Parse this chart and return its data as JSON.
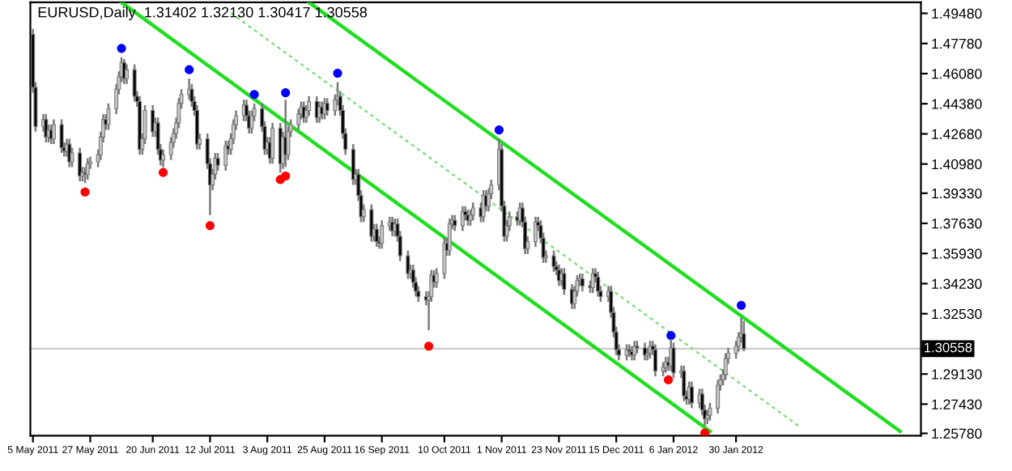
{
  "chart_data": {
    "type": "candlestick",
    "title": "EURUSD,Daily  1.31402 1.32130 1.30417 1.30558",
    "x": [
      "2011-05-05",
      "2011-05-06",
      "2011-05-09",
      "2011-05-10",
      "2011-05-11",
      "2011-05-12",
      "2011-05-13",
      "2011-05-16",
      "2011-05-17",
      "2011-05-18",
      "2011-05-19",
      "2011-05-20",
      "2011-05-23",
      "2011-05-24",
      "2011-05-25",
      "2011-05-26",
      "2011-05-27",
      "2011-05-30",
      "2011-05-31",
      "2011-06-01",
      "2011-06-02",
      "2011-06-03",
      "2011-06-06",
      "2011-06-07",
      "2011-06-08",
      "2011-06-09",
      "2011-06-10",
      "2011-06-13",
      "2011-06-14",
      "2011-06-15",
      "2011-06-16",
      "2011-06-17",
      "2011-06-20",
      "2011-06-21",
      "2011-06-22",
      "2011-06-23",
      "2011-06-24",
      "2011-06-27",
      "2011-06-28",
      "2011-06-29",
      "2011-06-30",
      "2011-07-01",
      "2011-07-04",
      "2011-07-05",
      "2011-07-06",
      "2011-07-07",
      "2011-07-08",
      "2011-07-11",
      "2011-07-12",
      "2011-07-13",
      "2011-07-14",
      "2011-07-15",
      "2011-07-18",
      "2011-07-19",
      "2011-07-20",
      "2011-07-21",
      "2011-07-22",
      "2011-07-25",
      "2011-07-26",
      "2011-07-27",
      "2011-07-28",
      "2011-07-29",
      "2011-08-01",
      "2011-08-02",
      "2011-08-03",
      "2011-08-04",
      "2011-08-05",
      "2011-08-08",
      "2011-08-09",
      "2011-08-10",
      "2011-08-11",
      "2011-08-12",
      "2011-08-15",
      "2011-08-16",
      "2011-08-17",
      "2011-08-18",
      "2011-08-19",
      "2011-08-22",
      "2011-08-23",
      "2011-08-24",
      "2011-08-25",
      "2011-08-26",
      "2011-08-29",
      "2011-08-30",
      "2011-08-31",
      "2011-09-01",
      "2011-09-02",
      "2011-09-05",
      "2011-09-06",
      "2011-09-07",
      "2011-09-08",
      "2011-09-09",
      "2011-09-12",
      "2011-09-13",
      "2011-09-14",
      "2011-09-15",
      "2011-09-16",
      "2011-09-19",
      "2011-09-20",
      "2011-09-21",
      "2011-09-22",
      "2011-09-23",
      "2011-09-26",
      "2011-09-27",
      "2011-09-28",
      "2011-09-29",
      "2011-09-30",
      "2011-10-03",
      "2011-10-04",
      "2011-10-05",
      "2011-10-06",
      "2011-10-07",
      "2011-10-10",
      "2011-10-11",
      "2011-10-12",
      "2011-10-13",
      "2011-10-14",
      "2011-10-17",
      "2011-10-18",
      "2011-10-19",
      "2011-10-20",
      "2011-10-21",
      "2011-10-24",
      "2011-10-25",
      "2011-10-26",
      "2011-10-27",
      "2011-10-28",
      "2011-10-31",
      "2011-11-01",
      "2011-11-02",
      "2011-11-03",
      "2011-11-04",
      "2011-11-07",
      "2011-11-08",
      "2011-11-09",
      "2011-11-10",
      "2011-11-11",
      "2011-11-14",
      "2011-11-15",
      "2011-11-16",
      "2011-11-17",
      "2011-11-18",
      "2011-11-21",
      "2011-11-22",
      "2011-11-23",
      "2011-11-24",
      "2011-11-25",
      "2011-11-28",
      "2011-11-29",
      "2011-11-30",
      "2011-12-01",
      "2011-12-02",
      "2011-12-05",
      "2011-12-06",
      "2011-12-07",
      "2011-12-08",
      "2011-12-09",
      "2011-12-12",
      "2011-12-13",
      "2011-12-14",
      "2011-12-15",
      "2011-12-16",
      "2011-12-19",
      "2011-12-20",
      "2011-12-21",
      "2011-12-22",
      "2011-12-23",
      "2011-12-26",
      "2011-12-27",
      "2011-12-28",
      "2011-12-29",
      "2011-12-30",
      "2012-01-02",
      "2012-01-03",
      "2012-01-04",
      "2012-01-05",
      "2012-01-06",
      "2012-01-09",
      "2012-01-10",
      "2012-01-11",
      "2012-01-12",
      "2012-01-13",
      "2012-01-16",
      "2012-01-17",
      "2012-01-18",
      "2012-01-19",
      "2012-01-20",
      "2012-01-23",
      "2012-01-24",
      "2012-01-25",
      "2012-01-26",
      "2012-01-27",
      "2012-01-30",
      "2012-01-31",
      "2012-02-01",
      "2012-02-02"
    ],
    "ohlc": [
      [
        1.483,
        1.486,
        1.45,
        1.453
      ],
      [
        1.453,
        1.456,
        1.428,
        1.431
      ],
      [
        1.431,
        1.438,
        1.428,
        1.435
      ],
      [
        1.435,
        1.438,
        1.422,
        1.425
      ],
      [
        1.425,
        1.432,
        1.422,
        1.429
      ],
      [
        1.429,
        1.432,
        1.421,
        1.424
      ],
      [
        1.424,
        1.435,
        1.421,
        1.432
      ],
      [
        1.432,
        1.435,
        1.416,
        1.419
      ],
      [
        1.419,
        1.422,
        1.414,
        1.417
      ],
      [
        1.417,
        1.424,
        1.414,
        1.421
      ],
      [
        1.421,
        1.424,
        1.408,
        1.411
      ],
      [
        1.411,
        1.419,
        1.408,
        1.416
      ],
      [
        1.416,
        1.419,
        1.4,
        1.403
      ],
      [
        1.403,
        1.408,
        1.4,
        1.405
      ],
      [
        1.405,
        1.408,
        1.399,
        1.404
      ],
      [
        1.404,
        1.413,
        1.401,
        1.41
      ],
      [
        1.41,
        1.414,
        1.407,
        1.411
      ],
      [
        1.411,
        1.418,
        1.408,
        1.415
      ],
      [
        1.415,
        1.428,
        1.412,
        1.425
      ],
      [
        1.425,
        1.438,
        1.422,
        1.435
      ],
      [
        1.435,
        1.438,
        1.429,
        1.432
      ],
      [
        1.432,
        1.444,
        1.429,
        1.441
      ],
      [
        1.441,
        1.455,
        1.438,
        1.452
      ],
      [
        1.452,
        1.462,
        1.449,
        1.459
      ],
      [
        1.459,
        1.47,
        1.456,
        1.467
      ],
      [
        1.467,
        1.469,
        1.455,
        1.458
      ],
      [
        1.458,
        1.466,
        1.455,
        1.463
      ],
      [
        1.463,
        1.466,
        1.445,
        1.448
      ],
      [
        1.448,
        1.451,
        1.442,
        1.445
      ],
      [
        1.445,
        1.448,
        1.415,
        1.418
      ],
      [
        1.418,
        1.427,
        1.415,
        1.424
      ],
      [
        1.424,
        1.443,
        1.421,
        1.44
      ],
      [
        1.44,
        1.443,
        1.425,
        1.428
      ],
      [
        1.428,
        1.436,
        1.425,
        1.433
      ],
      [
        1.433,
        1.436,
        1.415,
        1.418
      ],
      [
        1.418,
        1.421,
        1.409,
        1.412
      ],
      [
        1.412,
        1.418,
        1.408,
        1.415
      ],
      [
        1.415,
        1.425,
        1.412,
        1.422
      ],
      [
        1.422,
        1.43,
        1.419,
        1.427
      ],
      [
        1.427,
        1.436,
        1.424,
        1.433
      ],
      [
        1.433,
        1.447,
        1.43,
        1.444
      ],
      [
        1.444,
        1.452,
        1.441,
        1.449
      ],
      [
        1.449,
        1.458,
        1.446,
        1.452
      ],
      [
        1.452,
        1.455,
        1.442,
        1.445
      ],
      [
        1.445,
        1.448,
        1.437,
        1.44
      ],
      [
        1.44,
        1.443,
        1.418,
        1.421
      ],
      [
        1.421,
        1.427,
        1.418,
        1.424
      ],
      [
        1.424,
        1.427,
        1.407,
        1.41
      ],
      [
        1.41,
        1.413,
        1.381,
        1.398
      ],
      [
        1.398,
        1.407,
        1.395,
        1.404
      ],
      [
        1.404,
        1.416,
        1.401,
        1.413
      ],
      [
        1.413,
        1.416,
        1.406,
        1.409
      ],
      [
        1.409,
        1.423,
        1.406,
        1.42
      ],
      [
        1.42,
        1.423,
        1.415,
        1.418
      ],
      [
        1.418,
        1.427,
        1.415,
        1.424
      ],
      [
        1.424,
        1.435,
        1.421,
        1.432
      ],
      [
        1.432,
        1.44,
        1.429,
        1.437
      ],
      [
        1.437,
        1.446,
        1.434,
        1.443
      ],
      [
        1.443,
        1.446,
        1.434,
        1.437
      ],
      [
        1.437,
        1.44,
        1.427,
        1.43
      ],
      [
        1.43,
        1.44,
        1.427,
        1.437
      ],
      [
        1.437,
        1.444,
        1.434,
        1.441
      ],
      [
        1.441,
        1.444,
        1.428,
        1.431
      ],
      [
        1.431,
        1.434,
        1.415,
        1.418
      ],
      [
        1.418,
        1.425,
        1.415,
        1.422
      ],
      [
        1.422,
        1.425,
        1.41,
        1.413
      ],
      [
        1.413,
        1.433,
        1.41,
        1.43
      ],
      [
        1.43,
        1.433,
        1.405,
        1.41
      ],
      [
        1.41,
        1.428,
        1.407,
        1.425
      ],
      [
        1.425,
        1.446,
        1.408,
        1.415
      ],
      [
        1.415,
        1.431,
        1.412,
        1.428
      ],
      [
        1.428,
        1.435,
        1.425,
        1.432
      ],
      [
        1.432,
        1.441,
        1.429,
        1.438
      ],
      [
        1.438,
        1.445,
        1.435,
        1.442
      ],
      [
        1.442,
        1.445,
        1.433,
        1.436
      ],
      [
        1.436,
        1.443,
        1.433,
        1.44
      ],
      [
        1.44,
        1.448,
        1.437,
        1.445
      ],
      [
        1.445,
        1.448,
        1.433,
        1.436
      ],
      [
        1.436,
        1.445,
        1.433,
        1.442
      ],
      [
        1.442,
        1.445,
        1.435,
        1.438
      ],
      [
        1.438,
        1.447,
        1.435,
        1.444
      ],
      [
        1.444,
        1.447,
        1.437,
        1.44
      ],
      [
        1.44,
        1.449,
        1.437,
        1.446
      ],
      [
        1.446,
        1.456,
        1.443,
        1.448
      ],
      [
        1.448,
        1.451,
        1.437,
        1.44
      ],
      [
        1.44,
        1.443,
        1.424,
        1.427
      ],
      [
        1.427,
        1.43,
        1.415,
        1.418
      ],
      [
        1.418,
        1.421,
        1.398,
        1.401
      ],
      [
        1.401,
        1.407,
        1.398,
        1.404
      ],
      [
        1.404,
        1.407,
        1.389,
        1.392
      ],
      [
        1.392,
        1.395,
        1.377,
        1.38
      ],
      [
        1.38,
        1.387,
        1.377,
        1.384
      ],
      [
        1.384,
        1.387,
        1.366,
        1.369
      ],
      [
        1.369,
        1.376,
        1.366,
        1.373
      ],
      [
        1.373,
        1.376,
        1.363,
        1.366
      ],
      [
        1.366,
        1.369,
        1.362,
        1.365
      ],
      [
        1.365,
        1.378,
        1.362,
        1.375
      ],
      [
        1.375,
        1.38,
        1.372,
        1.377
      ],
      [
        1.377,
        1.38,
        1.369,
        1.372
      ],
      [
        1.372,
        1.379,
        1.369,
        1.376
      ],
      [
        1.376,
        1.379,
        1.366,
        1.369
      ],
      [
        1.369,
        1.372,
        1.355,
        1.358
      ],
      [
        1.358,
        1.361,
        1.345,
        1.348
      ],
      [
        1.348,
        1.353,
        1.345,
        1.35
      ],
      [
        1.35,
        1.353,
        1.34,
        1.343
      ],
      [
        1.343,
        1.346,
        1.335,
        1.338
      ],
      [
        1.338,
        1.341,
        1.332,
        1.335
      ],
      [
        1.335,
        1.338,
        1.33,
        1.333
      ],
      [
        1.333,
        1.338,
        1.316,
        1.335
      ],
      [
        1.335,
        1.35,
        1.332,
        1.347
      ],
      [
        1.347,
        1.35,
        1.34,
        1.343
      ],
      [
        1.343,
        1.351,
        1.34,
        1.348
      ],
      [
        1.348,
        1.368,
        1.345,
        1.365
      ],
      [
        1.365,
        1.368,
        1.358,
        1.361
      ],
      [
        1.361,
        1.379,
        1.358,
        1.376
      ],
      [
        1.376,
        1.381,
        1.373,
        1.378
      ],
      [
        1.378,
        1.381,
        1.372,
        1.375
      ],
      [
        1.375,
        1.386,
        1.372,
        1.383
      ],
      [
        1.383,
        1.386,
        1.378,
        1.381
      ],
      [
        1.381,
        1.384,
        1.375,
        1.378
      ],
      [
        1.378,
        1.384,
        1.375,
        1.381
      ],
      [
        1.381,
        1.388,
        1.378,
        1.385
      ],
      [
        1.385,
        1.388,
        1.377,
        1.38
      ],
      [
        1.38,
        1.395,
        1.377,
        1.392
      ],
      [
        1.392,
        1.395,
        1.383,
        1.386
      ],
      [
        1.386,
        1.396,
        1.383,
        1.393
      ],
      [
        1.393,
        1.401,
        1.39,
        1.398
      ],
      [
        1.398,
        1.424,
        1.395,
        1.418
      ],
      [
        1.418,
        1.421,
        1.383,
        1.386
      ],
      [
        1.386,
        1.389,
        1.366,
        1.369
      ],
      [
        1.369,
        1.378,
        1.366,
        1.375
      ],
      [
        1.375,
        1.383,
        1.372,
        1.38
      ],
      [
        1.38,
        1.383,
        1.375,
        1.378
      ],
      [
        1.378,
        1.388,
        1.375,
        1.385
      ],
      [
        1.385,
        1.388,
        1.374,
        1.377
      ],
      [
        1.377,
        1.38,
        1.359,
        1.362
      ],
      [
        1.362,
        1.369,
        1.359,
        1.366
      ],
      [
        1.366,
        1.38,
        1.363,
        1.377
      ],
      [
        1.377,
        1.38,
        1.372,
        1.375
      ],
      [
        1.375,
        1.378,
        1.365,
        1.368
      ],
      [
        1.368,
        1.371,
        1.354,
        1.357
      ],
      [
        1.357,
        1.361,
        1.354,
        1.358
      ],
      [
        1.358,
        1.361,
        1.349,
        1.352
      ],
      [
        1.352,
        1.355,
        1.347,
        1.35
      ],
      [
        1.35,
        1.353,
        1.341,
        1.344
      ],
      [
        1.344,
        1.351,
        1.341,
        1.348
      ],
      [
        1.348,
        1.351,
        1.336,
        1.339
      ],
      [
        1.339,
        1.342,
        1.328,
        1.331
      ],
      [
        1.331,
        1.341,
        1.328,
        1.338
      ],
      [
        1.338,
        1.347,
        1.335,
        1.344
      ],
      [
        1.344,
        1.348,
        1.341,
        1.345
      ],
      [
        1.345,
        1.348,
        1.338,
        1.341
      ],
      [
        1.341,
        1.344,
        1.337,
        1.34
      ],
      [
        1.34,
        1.351,
        1.337,
        1.348
      ],
      [
        1.348,
        1.351,
        1.343,
        1.346
      ],
      [
        1.346,
        1.349,
        1.335,
        1.338
      ],
      [
        1.338,
        1.341,
        1.332,
        1.335
      ],
      [
        1.335,
        1.341,
        1.332,
        1.338
      ],
      [
        1.338,
        1.341,
        1.323,
        1.326
      ],
      [
        1.326,
        1.329,
        1.312,
        1.315
      ],
      [
        1.315,
        1.318,
        1.302,
        1.305
      ],
      [
        1.305,
        1.308,
        1.299,
        1.302
      ],
      [
        1.302,
        1.308,
        1.299,
        1.305
      ],
      [
        1.305,
        1.308,
        1.301,
        1.304
      ],
      [
        1.304,
        1.307,
        1.299,
        1.302
      ],
      [
        1.302,
        1.31,
        1.299,
        1.307
      ],
      [
        1.307,
        1.31,
        1.303,
        1.306
      ],
      [
        1.306,
        1.309,
        1.299,
        1.302
      ],
      [
        1.302,
        1.306,
        1.299,
        1.303
      ],
      [
        1.303,
        1.31,
        1.3,
        1.307
      ],
      [
        1.307,
        1.31,
        1.302,
        1.305
      ],
      [
        1.305,
        1.308,
        1.29,
        1.293
      ],
      [
        1.293,
        1.298,
        1.29,
        1.295
      ],
      [
        1.295,
        1.301,
        1.292,
        1.298
      ],
      [
        1.298,
        1.301,
        1.293,
        1.296
      ],
      [
        1.296,
        1.311,
        1.293,
        1.306
      ],
      [
        1.306,
        1.309,
        1.289,
        1.292
      ],
      [
        1.292,
        1.296,
        1.289,
        1.293
      ],
      [
        1.293,
        1.296,
        1.276,
        1.279
      ],
      [
        1.279,
        1.282,
        1.274,
        1.277
      ],
      [
        1.277,
        1.287,
        1.274,
        1.284
      ],
      [
        1.284,
        1.287,
        1.272,
        1.275
      ],
      [
        1.275,
        1.283,
        1.272,
        1.28
      ],
      [
        1.28,
        1.283,
        1.268,
        1.271
      ],
      [
        1.271,
        1.274,
        1.262,
        1.266
      ],
      [
        1.266,
        1.271,
        1.263,
        1.268
      ],
      [
        1.268,
        1.275,
        1.265,
        1.272
      ],
      [
        1.272,
        1.288,
        1.269,
        1.285
      ],
      [
        1.285,
        1.291,
        1.282,
        1.288
      ],
      [
        1.288,
        1.294,
        1.285,
        1.291
      ],
      [
        1.291,
        1.303,
        1.288,
        1.3
      ],
      [
        1.3,
        1.306,
        1.297,
        1.303
      ],
      [
        1.303,
        1.31,
        1.3,
        1.307
      ],
      [
        1.307,
        1.315,
        1.304,
        1.312
      ],
      [
        1.312,
        1.323,
        1.309,
        1.314
      ],
      [
        1.31402,
        1.3213,
        1.30417,
        1.30558
      ]
    ],
    "series": [
      {
        "type": "line",
        "color": "#22dd22",
        "line_style": "solid",
        "x": [
          "2011-06-08",
          "2012-01-20"
        ],
        "values": [
          1.501,
          1.259
        ]
      },
      {
        "type": "line",
        "color": "#22dd22",
        "line_style": "solid",
        "x": [
          "2011-08-19",
          "2012-04-02"
        ],
        "values": [
          1.501,
          1.259
        ]
      },
      {
        "type": "line",
        "color": "#77dd77",
        "line_style": "dashed",
        "x": [
          "2011-07-20",
          "2012-02-23"
        ],
        "values": [
          1.495,
          1.262
        ]
      },
      {
        "type": "scatter",
        "color": "#0000ff",
        "marker": "circle",
        "x": [
          "2011-06-08",
          "2011-07-04",
          "2011-07-29",
          "2011-08-10",
          "2011-08-30",
          "2011-10-31",
          "2012-01-05",
          "2012-02-01"
        ],
        "values": [
          1.475,
          1.463,
          1.449,
          1.45,
          1.461,
          1.429,
          1.313,
          1.33
        ]
      },
      {
        "type": "scatter",
        "color": "#ff0000",
        "marker": "circle",
        "x": [
          "2011-05-25",
          "2011-06-24",
          "2011-07-12",
          "2011-08-08",
          "2011-08-10",
          "2011-10-04",
          "2012-01-04",
          "2012-01-18"
        ],
        "values": [
          1.394,
          1.405,
          1.375,
          1.401,
          1.403,
          1.307,
          1.288,
          1.258
        ]
      }
    ],
    "ref_lines": [
      {
        "axis": "y",
        "value": 1.30558,
        "label": "1.30558",
        "color": "#d0c8c8"
      }
    ],
    "xlim": [
      "2011-05-04",
      "2012-04-10"
    ],
    "xticks": [
      {
        "value": "2011-05-05",
        "label": "5 May 2011"
      },
      {
        "value": "2011-05-27",
        "label": "27 May 2011"
      },
      {
        "value": "2011-06-20",
        "label": "20 Jun 2011"
      },
      {
        "value": "2011-07-12",
        "label": "12 Jul 2011"
      },
      {
        "value": "2011-08-03",
        "label": "3 Aug 2011"
      },
      {
        "value": "2011-08-25",
        "label": "25 Aug 2011"
      },
      {
        "value": "2011-09-16",
        "label": "16 Sep 2011"
      },
      {
        "value": "2011-10-10",
        "label": "10 Oct 2011"
      },
      {
        "value": "2011-11-01",
        "label": "1 Nov 2011"
      },
      {
        "value": "2011-11-23",
        "label": "23 Nov 2011"
      },
      {
        "value": "2011-12-15",
        "label": "15 Dec 2011"
      },
      {
        "value": "2012-01-06",
        "label": "6 Jan 2012"
      },
      {
        "value": "2012-01-30",
        "label": "30 Jan 2012"
      }
    ],
    "ylim": [
      1.2565,
      1.501
    ],
    "yticks": [
      {
        "value": 1.4948,
        "label": "1.49480"
      },
      {
        "value": 1.4778,
        "label": "1.47780"
      },
      {
        "value": 1.4608,
        "label": "1.46080"
      },
      {
        "value": 1.4438,
        "label": "1.44380"
      },
      {
        "value": 1.4268,
        "label": "1.42680"
      },
      {
        "value": 1.4098,
        "label": "1.40980"
      },
      {
        "value": 1.3933,
        "label": "1.39330"
      },
      {
        "value": 1.3763,
        "label": "1.37630"
      },
      {
        "value": 1.3593,
        "label": "1.35930"
      },
      {
        "value": 1.3423,
        "label": "1.34230"
      },
      {
        "value": 1.3253,
        "label": "1.32530"
      },
      {
        "value": 1.2913,
        "label": "1.29130"
      },
      {
        "value": 1.2743,
        "label": "1.27430"
      },
      {
        "value": 1.2578,
        "label": "1.25780"
      }
    ]
  }
}
